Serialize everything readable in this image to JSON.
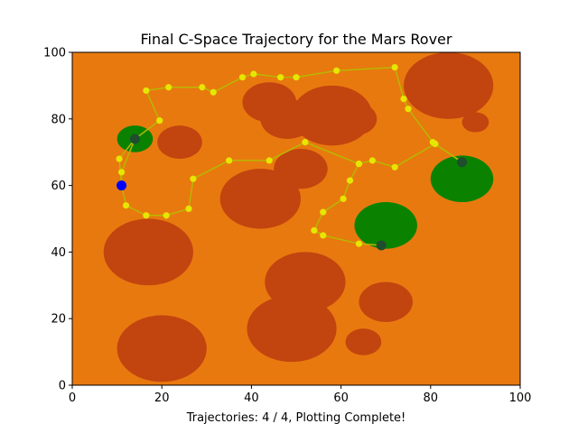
{
  "chart_data": {
    "type": "scatter",
    "title": "Final C-Space Trajectory for the Mars Rover",
    "xlabel": "Trajectories: 4 / 4, Plotting Complete!",
    "ylabel": "",
    "xlim": [
      0,
      100
    ],
    "ylim": [
      0,
      100
    ],
    "x_ticks": [
      "0",
      "20",
      "40",
      "60",
      "80",
      "100"
    ],
    "y_ticks": [
      "0",
      "20",
      "40",
      "60",
      "80",
      "100"
    ],
    "grid": false,
    "legend": "none",
    "colors": {
      "terrain": "#e8790f",
      "obstacle": "#c2440f",
      "goal_zone": "#0a8200",
      "path_line": "#b7b800",
      "path_point": "#e6e600",
      "start_point": "#0000ff",
      "goal_point": "#1f4d2e"
    },
    "obstacles": [
      {
        "cx": 84,
        "cy": 90,
        "rx": 10,
        "ry": 10
      },
      {
        "cx": 58,
        "cy": 81,
        "rx": 9,
        "ry": 9
      },
      {
        "cx": 63,
        "cy": 80,
        "rx": 5,
        "ry": 5
      },
      {
        "cx": 44,
        "cy": 85,
        "rx": 6,
        "ry": 6
      },
      {
        "cx": 48,
        "cy": 80,
        "rx": 6,
        "ry": 6
      },
      {
        "cx": 24,
        "cy": 73,
        "rx": 5,
        "ry": 5
      },
      {
        "cx": 90,
        "cy": 79,
        "rx": 3,
        "ry": 3
      },
      {
        "cx": 51,
        "cy": 65,
        "rx": 6,
        "ry": 6
      },
      {
        "cx": 42,
        "cy": 56,
        "rx": 9,
        "ry": 9
      },
      {
        "cx": 17,
        "cy": 40,
        "rx": 10,
        "ry": 10
      },
      {
        "cx": 52,
        "cy": 31,
        "rx": 9,
        "ry": 9
      },
      {
        "cx": 70,
        "cy": 25,
        "rx": 6,
        "ry": 6
      },
      {
        "cx": 49,
        "cy": 17,
        "rx": 10,
        "ry": 10
      },
      {
        "cx": 65,
        "cy": 13,
        "rx": 4,
        "ry": 4
      },
      {
        "cx": 20,
        "cy": 11,
        "rx": 10,
        "ry": 10
      }
    ],
    "goal_zones": [
      {
        "cx": 14,
        "cy": 74,
        "rx": 4,
        "ry": 4
      },
      {
        "cx": 87,
        "cy": 62,
        "rx": 7,
        "ry": 7
      },
      {
        "cx": 70,
        "cy": 48,
        "rx": 7,
        "ry": 7
      }
    ],
    "paths": [
      {
        "points": [
          [
            11,
            60
          ],
          [
            10.5,
            68
          ],
          [
            14,
            74
          ]
        ]
      },
      {
        "points": [
          [
            14,
            74
          ],
          [
            19.5,
            79.5
          ],
          [
            16.5,
            88.5
          ],
          [
            21.5,
            89.5
          ],
          [
            29,
            89.5
          ],
          [
            31.5,
            88
          ],
          [
            38,
            92.5
          ],
          [
            40.5,
            93.5
          ],
          [
            46.5,
            92.5
          ],
          [
            50,
            92.5
          ],
          [
            59,
            94.5
          ],
          [
            72,
            95.5
          ],
          [
            74,
            86
          ],
          [
            75,
            83
          ],
          [
            80.5,
            73
          ],
          [
            81,
            72.5
          ],
          [
            87,
            67
          ]
        ]
      },
      {
        "points": [
          [
            87,
            67
          ],
          [
            81,
            72.5
          ],
          [
            72,
            65.5
          ],
          [
            67,
            67.5
          ],
          [
            64,
            66.5
          ],
          [
            52,
            73
          ],
          [
            44,
            67.5
          ],
          [
            35,
            67.5
          ],
          [
            27,
            62
          ],
          [
            26,
            53
          ],
          [
            21,
            51
          ],
          [
            16.5,
            51
          ],
          [
            12,
            54
          ],
          [
            11,
            60
          ]
        ]
      },
      {
        "points": [
          [
            11,
            60
          ],
          [
            11,
            64
          ],
          [
            14,
            74
          ]
        ]
      },
      {
        "points": [
          [
            64,
            66.5
          ],
          [
            62,
            61.5
          ],
          [
            60.5,
            56
          ],
          [
            56,
            52
          ],
          [
            54,
            46.5
          ],
          [
            56,
            45
          ],
          [
            64,
            42.5
          ],
          [
            69,
            42
          ]
        ]
      }
    ],
    "start": {
      "x": 11,
      "y": 60
    },
    "goals": [
      {
        "x": 14,
        "y": 74
      },
      {
        "x": 87,
        "y": 67
      },
      {
        "x": 69,
        "y": 42
      }
    ]
  }
}
